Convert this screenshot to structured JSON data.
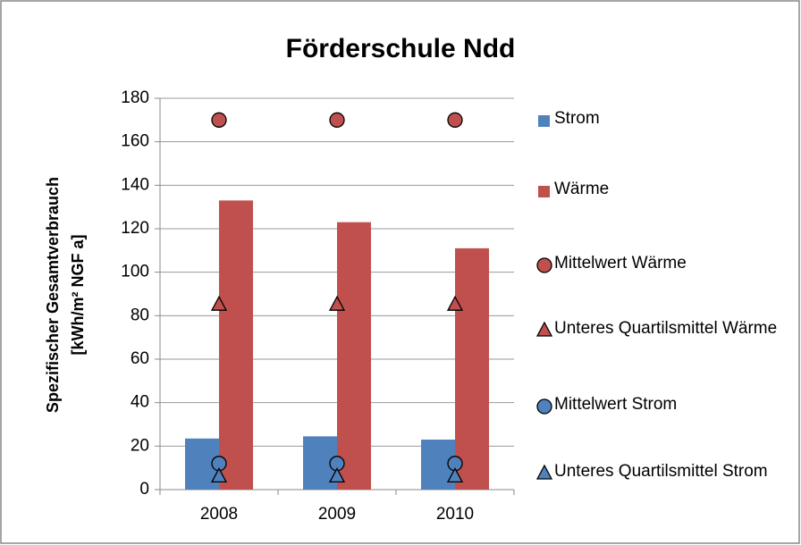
{
  "chart_data": {
    "type": "bar",
    "title": "Förderschule Ndd",
    "ylabel": [
      "Spezifischer Gesamtverbrauch",
      "[kWh/m² NGF a]"
    ],
    "categories": [
      "2008",
      "2009",
      "2010"
    ],
    "ylim": [
      0,
      180
    ],
    "yticks": [
      0,
      20,
      40,
      60,
      80,
      100,
      120,
      140,
      160,
      180
    ],
    "grid": true,
    "legend": "right",
    "series": [
      {
        "name": "Strom",
        "color": "#4f81bd",
        "kind": "bar",
        "values": [
          23.5,
          24.5,
          23
        ]
      },
      {
        "name": "Wärme",
        "color": "#c0504d",
        "kind": "bar",
        "values": [
          133,
          123,
          111
        ]
      },
      {
        "name": "Mittelwert Wärme",
        "color": "#c0504d",
        "kind": "marker",
        "marker": "circle",
        "values": [
          170,
          170,
          170
        ]
      },
      {
        "name": "Unteres Quartilsmittel Wärme",
        "color": "#c0504d",
        "kind": "marker",
        "marker": "triangle",
        "values": [
          85,
          85,
          85
        ]
      },
      {
        "name": "Mittelwert Strom",
        "color": "#4f81bd",
        "kind": "marker",
        "marker": "circle",
        "values": [
          12,
          12,
          12
        ]
      },
      {
        "name": "Unteres Quartilsmittel Strom",
        "color": "#4f81bd",
        "kind": "marker",
        "marker": "triangle",
        "values": [
          6,
          6,
          6
        ]
      }
    ]
  }
}
